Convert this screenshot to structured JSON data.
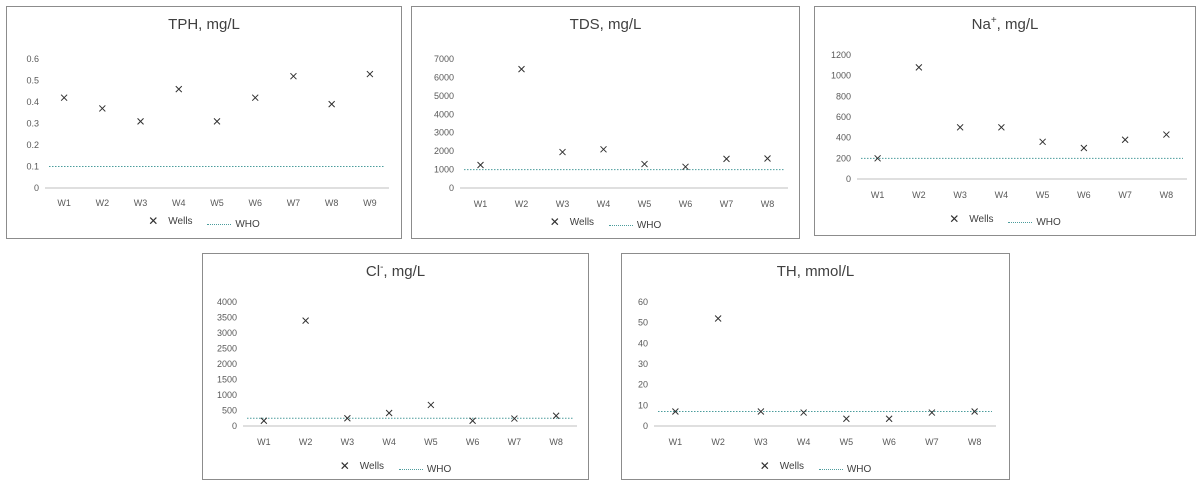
{
  "legend": {
    "wells": "Wells",
    "who": "WHO"
  },
  "colors": {
    "marker": "#303030",
    "who_line": "#4b9c9c",
    "axis": "#bfbfbf"
  },
  "chart_data": [
    {
      "type": "scatter",
      "title": "TPH, mg/L",
      "title_sup": "",
      "title_tail": "",
      "categories": [
        "W1",
        "W2",
        "W3",
        "W4",
        "W5",
        "W6",
        "W7",
        "W8",
        "W9"
      ],
      "ylim": [
        0,
        0.6
      ],
      "yticks": [
        "0",
        "0.1",
        "0.2",
        "0.3",
        "0.4",
        "0.5",
        "0.6"
      ],
      "series": [
        {
          "name": "Wells",
          "values": [
            0.42,
            0.37,
            0.31,
            0.46,
            0.31,
            0.42,
            0.52,
            0.39,
            0.53
          ]
        },
        {
          "name": "WHO",
          "values": [
            0.1,
            0.1,
            0.1,
            0.1,
            0.1,
            0.1,
            0.1,
            0.1,
            0.1
          ]
        }
      ],
      "grid": false,
      "legend_position": "bottom"
    },
    {
      "type": "scatter",
      "title": "TDS, mg/L",
      "title_sup": "",
      "title_tail": "",
      "categories": [
        "W1",
        "W2",
        "W3",
        "W4",
        "W5",
        "W6",
        "W7",
        "W8"
      ],
      "ylim": [
        0,
        7000
      ],
      "yticks": [
        "0",
        "1000",
        "2000",
        "3000",
        "4000",
        "5000",
        "6000",
        "7000"
      ],
      "series": [
        {
          "name": "Wells",
          "values": [
            1250,
            6450,
            1950,
            2100,
            1300,
            1150,
            1580,
            1600
          ]
        },
        {
          "name": "WHO",
          "values": [
            1000,
            1000,
            1000,
            1000,
            1000,
            1000,
            1000,
            1000
          ]
        }
      ],
      "grid": false,
      "legend_position": "bottom"
    },
    {
      "type": "scatter",
      "title": "Na",
      "title_sup": "+",
      "title_tail": ", mg/L",
      "categories": [
        "W1",
        "W2",
        "W3",
        "W4",
        "W5",
        "W6",
        "W7",
        "W8"
      ],
      "ylim": [
        0,
        1200
      ],
      "yticks": [
        "0",
        "200",
        "400",
        "600",
        "800",
        "1000",
        "1200"
      ],
      "series": [
        {
          "name": "Wells",
          "values": [
            200,
            1080,
            500,
            500,
            360,
            300,
            380,
            430
          ]
        },
        {
          "name": "WHO",
          "values": [
            200,
            200,
            200,
            200,
            200,
            200,
            200,
            200
          ]
        }
      ],
      "grid": false,
      "legend_position": "bottom"
    },
    {
      "type": "scatter",
      "title": "Cl",
      "title_sup": "-",
      "title_tail": ", mg/L",
      "categories": [
        "W1",
        "W2",
        "W3",
        "W4",
        "W5",
        "W6",
        "W7",
        "W8"
      ],
      "ylim": [
        0,
        4000
      ],
      "yticks": [
        "0",
        "500",
        "1000",
        "1500",
        "2000",
        "2500",
        "3000",
        "3500",
        "4000"
      ],
      "series": [
        {
          "name": "Wells",
          "values": [
            170,
            3400,
            250,
            420,
            680,
            170,
            240,
            330
          ]
        },
        {
          "name": "WHO",
          "values": [
            250,
            250,
            250,
            250,
            250,
            250,
            250,
            250
          ]
        }
      ],
      "grid": false,
      "legend_position": "bottom"
    },
    {
      "type": "scatter",
      "title": "TH, mmol/L",
      "title_sup": "",
      "title_tail": "",
      "categories": [
        "W1",
        "W2",
        "W3",
        "W4",
        "W5",
        "W6",
        "W7",
        "W8"
      ],
      "ylim": [
        0,
        60
      ],
      "yticks": [
        "0",
        "10",
        "20",
        "30",
        "40",
        "50",
        "60"
      ],
      "series": [
        {
          "name": "Wells",
          "values": [
            7,
            52,
            7,
            6.5,
            3.5,
            3.5,
            6.5,
            7
          ]
        },
        {
          "name": "WHO",
          "values": [
            7,
            7,
            7,
            7,
            7,
            7,
            7,
            7
          ]
        }
      ],
      "grid": false,
      "legend_position": "bottom"
    }
  ]
}
